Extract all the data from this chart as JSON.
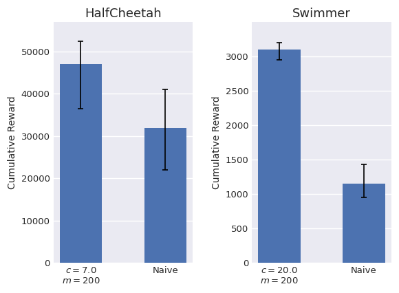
{
  "subplots": [
    {
      "title": "HalfCheetah",
      "ylabel": "Cumulative Reward",
      "categories": [
        "$c = 7.0$\n$m = 200$",
        "Naive"
      ],
      "values": [
        47000,
        32000
      ],
      "yerr_low": [
        10500,
        10000
      ],
      "yerr_high": [
        5500,
        9000
      ],
      "ylim": [
        0,
        57000
      ],
      "yticks": [
        0,
        10000,
        20000,
        30000,
        40000,
        50000
      ]
    },
    {
      "title": "Swimmer",
      "ylabel": "Cumulative Reward",
      "categories": [
        "$c = 20.0$\n$m = 200$",
        "Naive"
      ],
      "values": [
        3100,
        1150
      ],
      "yerr_low": [
        150,
        200
      ],
      "yerr_high": [
        100,
        280
      ],
      "ylim": [
        0,
        3500
      ],
      "yticks": [
        0,
        500,
        1000,
        1500,
        2000,
        2500,
        3000
      ]
    }
  ],
  "bar_color": "#4c72b0",
  "bar_width": 0.5,
  "error_color": "black",
  "error_linewidth": 1.2,
  "error_capsize": 3,
  "background_color": "#eaeaf2",
  "figure_facecolor": "white",
  "title_fontsize": 13,
  "label_fontsize": 10,
  "tick_fontsize": 9.5
}
